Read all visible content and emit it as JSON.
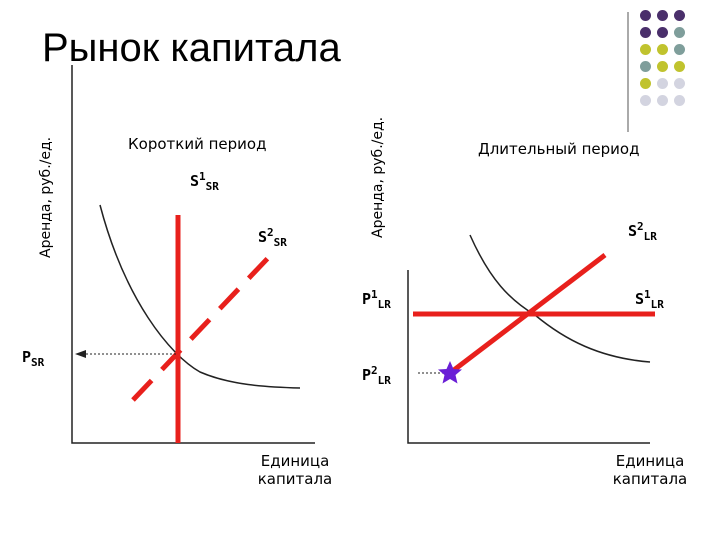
{
  "title": "Рынок капитала",
  "left_chart": {
    "y_axis_label": "Аренда, руб./ед.",
    "period_label": "Короткий период",
    "s1": {
      "base": "S",
      "sup": "1",
      "sub": "SR"
    },
    "s2": {
      "base": "S",
      "sup": "2",
      "sub": "SR"
    },
    "price": {
      "base": "P",
      "sub": "SR"
    },
    "x_axis_label_line1": "Единица",
    "x_axis_label_line2": "капитала"
  },
  "right_chart": {
    "y_axis_label": "Аренда, руб./ед.",
    "period_label": "Длительный период",
    "s2": {
      "base": "S",
      "sup": "2",
      "sub": "LR"
    },
    "s1": {
      "base": "S",
      "sup": "1",
      "sub": "LR"
    },
    "p1": {
      "base": "P",
      "sup": "1",
      "sub": "LR"
    },
    "p2": {
      "base": "P",
      "sup": "2",
      "sub": "LR"
    },
    "x_axis_label_line1": "Единица",
    "x_axis_label_line2": "капитала"
  },
  "colors": {
    "supply": "#e8201c",
    "axis": "#222222",
    "star": "#6a1fd6",
    "dot_purple": "#4a2f6b",
    "dot_teal": "#7f9e9b",
    "dot_olive": "#c0c32e",
    "dot_grey": "#d3d4e0"
  },
  "decor_dots": [
    [
      "dot_purple",
      "dot_purple",
      "dot_purple"
    ],
    [
      "dot_purple",
      "dot_purple",
      "dot_teal"
    ],
    [
      "dot_olive",
      "dot_olive",
      "dot_teal"
    ],
    [
      "dot_teal",
      "dot_olive",
      "dot_olive"
    ],
    [
      "dot_olive",
      "dot_grey",
      "dot_grey"
    ],
    [
      "dot_grey",
      "dot_grey",
      "dot_grey"
    ]
  ]
}
